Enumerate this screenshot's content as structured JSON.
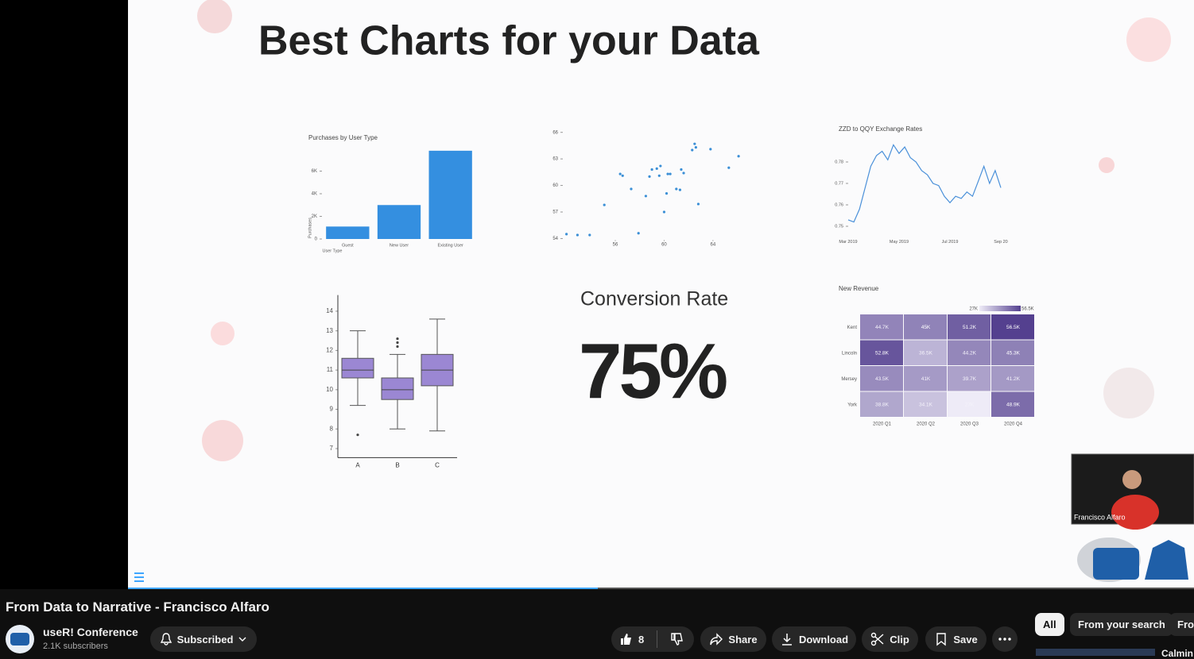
{
  "video": {
    "title": "From Data to Narrative - Francisco Alfaro",
    "channel": "useR! Conference",
    "subscribers": "2.1K subscribers",
    "subscribe_button": "Subscribed",
    "likes": "8",
    "actions": [
      "Share",
      "Download",
      "Clip",
      "Save"
    ],
    "chips": [
      "All",
      "From your search",
      "Fro"
    ],
    "next_video_title": "Calmin",
    "speaker": "Francisco Alfaro"
  },
  "slide": {
    "title": "Best Charts for your Data",
    "kpi": {
      "label": "Conversion Rate",
      "value": "75%"
    }
  },
  "chart_data": [
    {
      "type": "bar",
      "title": "Purchases by User Type",
      "x_label": "User Type",
      "y_label": "Purchases",
      "categories": [
        "Guest",
        "New User",
        "Existing User"
      ],
      "values": [
        1100,
        3000,
        7800
      ],
      "color": "#348fe0",
      "ylim": [
        0,
        8000
      ],
      "yticks": [
        0,
        {
          "value": 2000,
          "label": "2K"
        },
        {
          "value": 4000,
          "label": "4K"
        },
        {
          "value": 6000,
          "label": "6K"
        }
      ]
    },
    {
      "type": "scatter",
      "color": "#3b8fd6",
      "x": [
        52.0,
        52.9,
        53.9,
        55.1,
        56.4,
        56.6,
        57.3,
        57.9,
        58.5,
        58.8,
        59.0,
        59.4,
        59.6,
        59.7,
        60.0,
        60.2,
        60.3,
        60.5,
        61.0,
        61.3,
        61.4,
        61.6,
        62.3,
        62.5,
        62.6,
        62.8,
        63.8,
        65.3,
        66.1
      ],
      "values": [
        54.5,
        54.4,
        54.4,
        57.8,
        61.3,
        61.1,
        59.6,
        54.6,
        58.8,
        61.0,
        61.8,
        61.9,
        61.1,
        62.2,
        57.0,
        59.1,
        61.3,
        61.3,
        59.6,
        59.5,
        61.8,
        61.4,
        64.0,
        64.7,
        64.3,
        57.9,
        64.1,
        62.0,
        63.3
      ],
      "xlim": [
        51.7,
        67.2
      ],
      "ylim": [
        53.5,
        66.6
      ],
      "xticks": [
        56,
        60,
        64
      ],
      "yticks": [
        54,
        57,
        60,
        63,
        66
      ]
    },
    {
      "type": "line",
      "title": "ZZD to QQY Exchange Rates",
      "color": "#4a90d9",
      "categories": [
        "Mar 2019",
        null,
        null,
        null,
        null,
        null,
        null,
        null,
        null,
        "May 2019",
        null,
        null,
        null,
        null,
        null,
        null,
        null,
        null,
        "Jul 2019",
        null,
        null,
        null,
        null,
        null,
        null,
        null,
        null,
        "Sep 20"
      ],
      "values": [
        0.753,
        0.752,
        0.758,
        0.768,
        0.778,
        0.783,
        0.785,
        0.781,
        0.788,
        0.784,
        0.787,
        0.782,
        0.78,
        0.776,
        0.774,
        0.77,
        0.769,
        0.764,
        0.761,
        0.764,
        0.763,
        0.766,
        0.764,
        0.771,
        0.778,
        0.77,
        0.776,
        0.768
      ],
      "ylim": [
        0.745,
        0.792
      ],
      "yticks": [
        0.75,
        0.76,
        0.77,
        0.78
      ]
    },
    {
      "type": "box",
      "color": "#9b87d3",
      "categories": [
        "A",
        "B",
        "C"
      ],
      "series": [
        {
          "low": 9.2,
          "q1": 10.6,
          "median": 11,
          "q3": 11.6,
          "high": 13,
          "outliers": [
            7.7
          ]
        },
        {
          "low": 8,
          "q1": 9.5,
          "median": 10,
          "q3": 10.6,
          "high": 11.8,
          "outliers": [
            12.2,
            12.4,
            12.6
          ]
        },
        {
          "low": 7.9,
          "q1": 10.2,
          "median": 11,
          "q3": 11.8,
          "high": 13.6,
          "outliers": []
        }
      ],
      "ylim": [
        6.7,
        14.5
      ],
      "yticks": [
        7,
        8,
        9,
        10,
        11,
        12,
        13,
        14
      ]
    },
    {
      "type": "heatmap",
      "title": "New Revenue",
      "rows": [
        "Kent",
        "Lincoln",
        "Mersey",
        "York"
      ],
      "categories": [
        "2020 Q1",
        "2020 Q2",
        "2020 Q3",
        "2020 Q4"
      ],
      "values": [
        [
          44700,
          45000,
          51200,
          56500
        ],
        [
          52800,
          36500,
          44200,
          45300
        ],
        [
          43500,
          41000,
          39700,
          41200
        ],
        [
          38800,
          34100,
          27000,
          48900
        ]
      ],
      "value_labels": [
        [
          "44.7K",
          "45K",
          "51.2K",
          "56.5K"
        ],
        [
          "52.8K",
          "36.5K",
          "44.2K",
          "45.3K"
        ],
        [
          "43.5K",
          "41K",
          "39.7K",
          "41.2K"
        ],
        [
          "38.8K",
          "34.1K",
          "27K",
          "48.9K"
        ]
      ],
      "clim": [
        {
          "value": 27000,
          "label": "27K"
        },
        {
          "value": 56500,
          "label": "56.5K"
        }
      ],
      "colors": [
        "#eeebf7",
        "#54408f"
      ]
    }
  ]
}
